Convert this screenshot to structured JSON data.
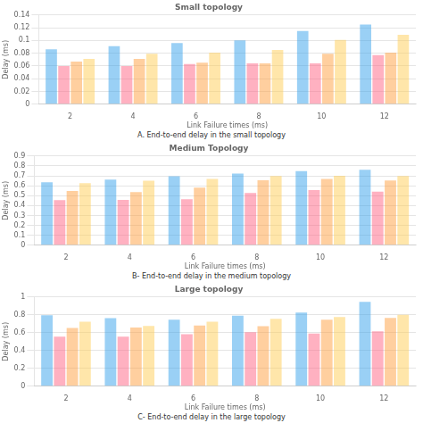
{
  "chart_data": [
    {
      "type": "bar",
      "title": "Small topology",
      "xlabel": "Link Failure times (ms)",
      "ylabel": "Delay (ms)",
      "caption": "A. End-to-end delay in the small topology",
      "categories": [
        "2",
        "4",
        "6",
        "8",
        "10",
        "12"
      ],
      "series": [
        {
          "values": [
            0.086,
            0.091,
            0.096,
            0.1,
            0.115,
            0.125
          ]
        },
        {
          "values": [
            0.06,
            0.06,
            0.063,
            0.064,
            0.064,
            0.077
          ]
        },
        {
          "values": [
            0.067,
            0.071,
            0.065,
            0.064,
            0.079,
            0.081
          ]
        },
        {
          "values": [
            0.071,
            0.079,
            0.081,
            0.085,
            0.101,
            0.109
          ]
        }
      ],
      "ylim": [
        0,
        0.14
      ],
      "yticks": [
        0,
        0.02,
        0.04,
        0.06,
        0.08,
        0.1,
        0.12,
        0.14
      ],
      "grid": true
    },
    {
      "type": "bar",
      "title": "Medium Topology",
      "xlabel": "Link Failure times (ms)",
      "ylabel": "Delay (ms)",
      "caption": "B- End-to-end delay in the medium topology",
      "categories": [
        "2",
        "4",
        "6",
        "8",
        "10",
        "12"
      ],
      "series": [
        {
          "values": [
            0.635,
            0.662,
            0.695,
            0.722,
            0.748,
            0.762
          ]
        },
        {
          "values": [
            0.455,
            0.457,
            0.465,
            0.527,
            0.557,
            0.54
          ]
        },
        {
          "values": [
            0.547,
            0.537,
            0.58,
            0.655,
            0.668,
            0.652
          ]
        },
        {
          "values": [
            0.625,
            0.65,
            0.668,
            0.698,
            0.7,
            0.698
          ]
        }
      ],
      "ylim": [
        0,
        0.9
      ],
      "yticks": [
        0,
        0.1,
        0.2,
        0.3,
        0.4,
        0.5,
        0.6,
        0.7,
        0.8,
        0.9
      ],
      "grid": true
    },
    {
      "type": "bar",
      "title": "Large topology",
      "xlabel": "Link Failure times (ms)",
      "ylabel": "Delay (ms)",
      "caption": "C- End-to-end delay in the large topology",
      "categories": [
        "2",
        "4",
        "6",
        "8",
        "10",
        "12"
      ],
      "series": [
        {
          "values": [
            0.795,
            0.762,
            0.745,
            0.79,
            0.825,
            0.945
          ]
        },
        {
          "values": [
            0.555,
            0.556,
            0.583,
            0.605,
            0.59,
            0.615
          ]
        },
        {
          "values": [
            0.652,
            0.657,
            0.68,
            0.672,
            0.745,
            0.765
          ]
        },
        {
          "values": [
            0.722,
            0.675,
            0.723,
            0.755,
            0.775,
            0.8
          ]
        }
      ],
      "ylim": [
        0,
        1
      ],
      "yticks": [
        0,
        0.2,
        0.4,
        0.6,
        0.8,
        1
      ],
      "grid": true
    }
  ]
}
